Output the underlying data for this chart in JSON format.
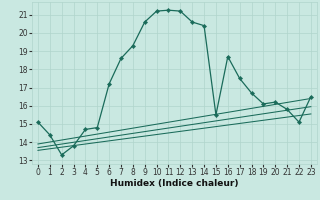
{
  "xlabel": "Humidex (Indice chaleur)",
  "xlim": [
    -0.5,
    23.5
  ],
  "ylim": [
    12.8,
    21.7
  ],
  "yticks": [
    13,
    14,
    15,
    16,
    17,
    18,
    19,
    20,
    21
  ],
  "xticks": [
    0,
    1,
    2,
    3,
    4,
    5,
    6,
    7,
    8,
    9,
    10,
    11,
    12,
    13,
    14,
    15,
    16,
    17,
    18,
    19,
    20,
    21,
    22,
    23
  ],
  "bg_color": "#c9e8e1",
  "line_color": "#1a6b5a",
  "grid_color": "#b0d5cc",
  "main_line": {
    "x": [
      0,
      1,
      2,
      3,
      4,
      5,
      6,
      7,
      8,
      9,
      10,
      11,
      12,
      13,
      14,
      15,
      16,
      17,
      18,
      19,
      20,
      21,
      22,
      23
    ],
    "y": [
      15.1,
      14.4,
      13.3,
      13.8,
      14.7,
      14.8,
      17.2,
      18.6,
      19.3,
      20.6,
      21.2,
      21.25,
      21.2,
      20.6,
      20.4,
      15.5,
      18.7,
      17.5,
      16.7,
      16.1,
      16.2,
      15.8,
      15.1,
      16.5
    ]
  },
  "trend_lines": [
    {
      "x": [
        0,
        23
      ],
      "y": [
        13.9,
        16.4
      ]
    },
    {
      "x": [
        0,
        23
      ],
      "y": [
        13.7,
        15.95
      ]
    },
    {
      "x": [
        0,
        23
      ],
      "y": [
        13.55,
        15.55
      ]
    }
  ]
}
